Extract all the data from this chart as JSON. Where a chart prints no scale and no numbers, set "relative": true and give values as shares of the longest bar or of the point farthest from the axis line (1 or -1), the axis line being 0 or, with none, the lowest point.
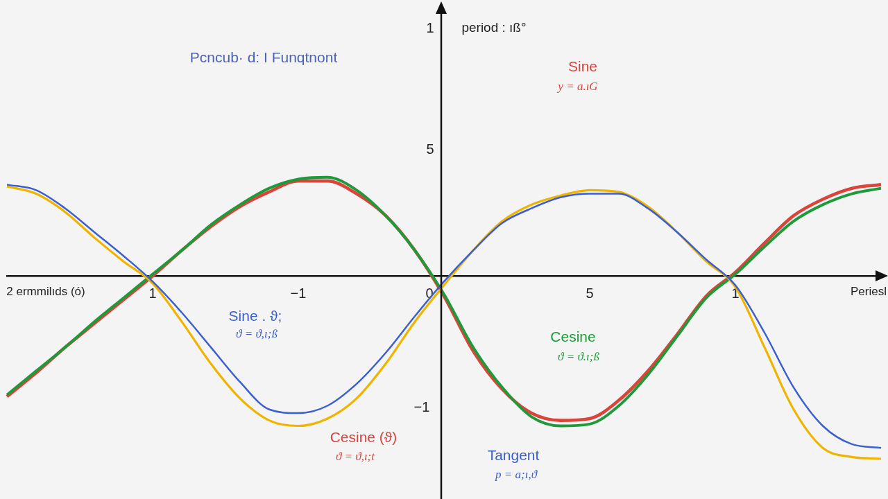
{
  "chart_data": {
    "type": "line",
    "relative": true,
    "title": "Pcncub· d: I Funqtnont",
    "xlabel": "Periesl",
    "categories": [
      null,
      null,
      null,
      null,
      null,
      null,
      null,
      null,
      null,
      null,
      "1",
      null,
      null,
      null,
      null,
      null,
      null,
      null,
      null,
      null,
      "−1",
      null,
      null,
      null,
      null,
      null,
      null,
      null,
      null,
      "0",
      null,
      null,
      null,
      null,
      null,
      null,
      null,
      null,
      null,
      null,
      "5",
      null,
      null,
      null,
      null,
      null,
      null,
      null,
      null,
      null,
      "1",
      null,
      null,
      null,
      null,
      null,
      null,
      null,
      null,
      null,
      null
    ],
    "series": [
      {
        "color": "#3b5fd0",
        "values": [
          0.5,
          null,
          0.47,
          null,
          0.37,
          null,
          0.24,
          null,
          0.11,
          null,
          -0.03,
          null,
          -0.2,
          null,
          -0.39,
          null,
          -0.58,
          null,
          -0.73,
          null,
          -0.75,
          null,
          -0.71,
          null,
          -0.59,
          null,
          -0.42,
          null,
          -0.22,
          null,
          -0.03,
          null,
          0.14,
          null,
          0.29,
          null,
          0.37,
          null,
          0.43,
          null,
          0.45,
          null,
          0.45,
          null,
          0.37,
          null,
          0.24,
          null,
          0.09,
          null,
          -0.05,
          null,
          -0.31,
          null,
          -0.61,
          null,
          -0.82,
          null,
          -0.92,
          null,
          -0.94
        ]
      },
      {
        "color": "#f0b400",
        "values": [
          0.49,
          null,
          0.45,
          null,
          0.35,
          null,
          0.21,
          null,
          0.08,
          null,
          -0.04,
          null,
          -0.25,
          null,
          -0.48,
          null,
          -0.67,
          null,
          -0.79,
          null,
          -0.82,
          null,
          -0.78,
          null,
          -0.67,
          null,
          -0.48,
          null,
          -0.25,
          null,
          -0.05,
          null,
          0.14,
          null,
          0.3,
          null,
          0.39,
          null,
          0.44,
          null,
          0.47,
          null,
          0.46,
          null,
          0.38,
          null,
          0.24,
          null,
          0.08,
          null,
          -0.06,
          null,
          -0.39,
          null,
          -0.73,
          null,
          -0.94,
          null,
          -0.99,
          null,
          -1
        ]
      },
      {
        "color": "#1f9a3a",
        "values": [
          -0.65,
          null,
          -0.52,
          null,
          -0.39,
          null,
          -0.25,
          null,
          -0.12,
          null,
          0.01,
          null,
          0.14,
          null,
          0.28,
          null,
          0.39,
          null,
          0.48,
          null,
          0.53,
          null,
          0.54,
          null,
          0.47,
          null,
          0.33,
          null,
          0.14,
          null,
          -0.1,
          null,
          -0.39,
          null,
          -0.61,
          null,
          -0.77,
          null,
          -0.82,
          null,
          -0.81,
          null,
          -0.71,
          null,
          -0.54,
          null,
          -0.33,
          null,
          -0.12,
          null,
          0.01,
          null,
          0.16,
          null,
          0.3,
          null,
          0.39,
          null,
          0.45,
          null,
          0.48
        ]
      },
      {
        "color": "#d9453a",
        "values": [
          -0.66,
          null,
          -0.53,
          null,
          -0.39,
          null,
          -0.26,
          null,
          -0.13,
          null,
          0.0,
          null,
          0.14,
          null,
          0.27,
          null,
          0.38,
          null,
          0.46,
          null,
          0.52,
          null,
          0.52,
          null,
          0.45,
          null,
          0.33,
          null,
          0.14,
          null,
          -0.11,
          null,
          -0.41,
          null,
          -0.62,
          null,
          -0.75,
          null,
          -0.79,
          null,
          -0.78,
          null,
          -0.68,
          null,
          -0.52,
          null,
          -0.32,
          null,
          -0.11,
          null,
          0.02,
          null,
          0.18,
          null,
          0.33,
          null,
          0.42,
          null,
          0.48,
          null,
          0.5
        ]
      }
    ],
    "annotations": [
      "period : ıß°",
      "1",
      "5",
      "−1",
      "2 ermmilıds (ó)",
      "Sine",
      "y = a.ıG",
      "Sine . ϑ;",
      "ϑ = ϑ,ı;ß",
      "Cesine",
      "ϑ = ϑ.ı;ß",
      "Cesine (ϑ)",
      "ϑ = ϑ,ı;t",
      "Tangent",
      "p = a;ı,ϑ"
    ]
  }
}
